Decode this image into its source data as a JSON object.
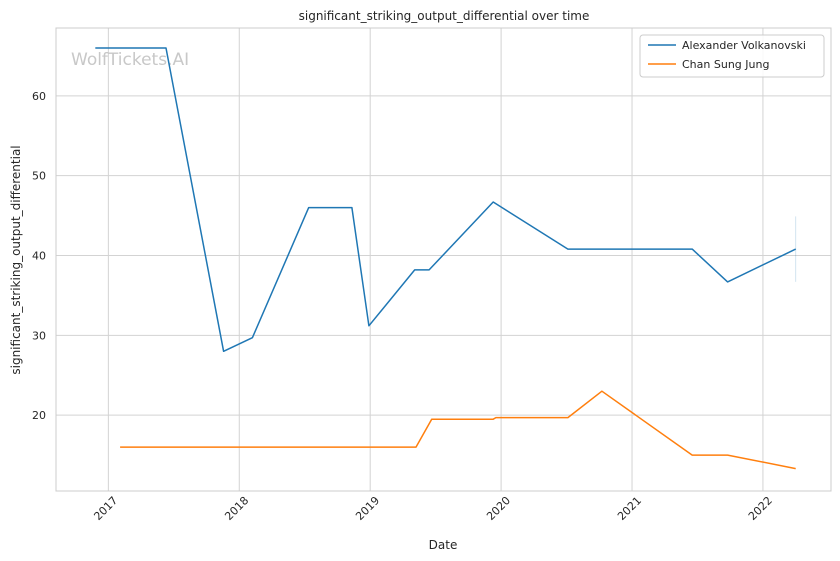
{
  "chart_data": {
    "type": "line",
    "title": "significant_striking_output_differential over time",
    "xlabel": "Date",
    "ylabel": "significant_striking_output_differential",
    "watermark": "WolfTickets.AI",
    "x_ticks": [
      "2017",
      "2018",
      "2019",
      "2020",
      "2021",
      "2022"
    ],
    "y_ticks": [
      20,
      30,
      40,
      50,
      60
    ],
    "xlim": [
      2016.6,
      2022.52
    ],
    "ylim": [
      10.5,
      68.5
    ],
    "grid": true,
    "legend_position": "top-right",
    "series": [
      {
        "name": "Alexander Volkanovski",
        "color": "#1f77b4",
        "points": [
          [
            2016.9,
            66.0
          ],
          [
            2017.44,
            66.0
          ],
          [
            2017.88,
            28.0
          ],
          [
            2018.1,
            29.7
          ],
          [
            2018.53,
            46.0
          ],
          [
            2018.86,
            46.0
          ],
          [
            2018.99,
            31.2
          ],
          [
            2019.34,
            38.2
          ],
          [
            2019.45,
            38.2
          ],
          [
            2019.94,
            46.7
          ],
          [
            2020.51,
            40.8
          ],
          [
            2021.46,
            40.8
          ],
          [
            2021.73,
            36.7
          ],
          [
            2022.25,
            40.8
          ]
        ],
        "error_bar": {
          "x": 2022.25,
          "low": 36.7,
          "high": 44.9
        }
      },
      {
        "name": "Chan Sung Jung",
        "color": "#ff7f0e",
        "points": [
          [
            2017.09,
            16.0
          ],
          [
            2019.35,
            16.0
          ],
          [
            2019.47,
            19.5
          ],
          [
            2019.94,
            19.5
          ],
          [
            2019.96,
            19.7
          ],
          [
            2020.51,
            19.7
          ],
          [
            2020.77,
            23.0
          ],
          [
            2021.46,
            15.0
          ],
          [
            2021.73,
            15.0
          ],
          [
            2022.25,
            13.3
          ]
        ]
      }
    ]
  }
}
